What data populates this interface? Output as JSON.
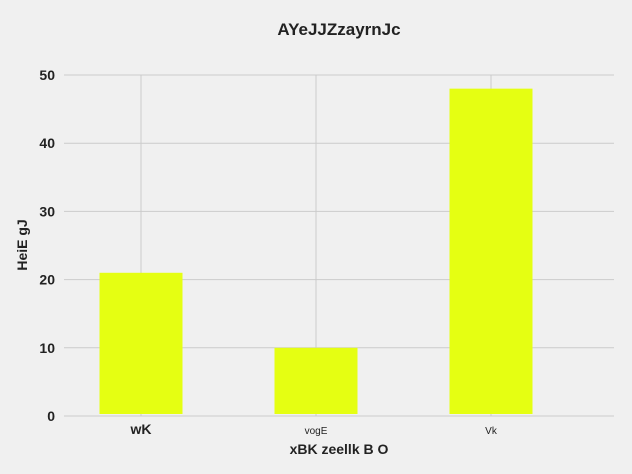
{
  "chart_data": {
    "type": "bar",
    "title": "AYeJJZzayrnJc",
    "xlabel": "xBK zeellk B O",
    "ylabel": "HeiE gJ",
    "categories": [
      "wK",
      "vogE",
      "Vk"
    ],
    "values": [
      21,
      10,
      48
    ],
    "ylim": [
      0,
      50
    ],
    "yticks": [
      0,
      10,
      20,
      30,
      40,
      50
    ],
    "bar_color": "#e5ff12",
    "background": "#f0f0f0",
    "grid": true,
    "grid_color": "#cbcbcb"
  }
}
